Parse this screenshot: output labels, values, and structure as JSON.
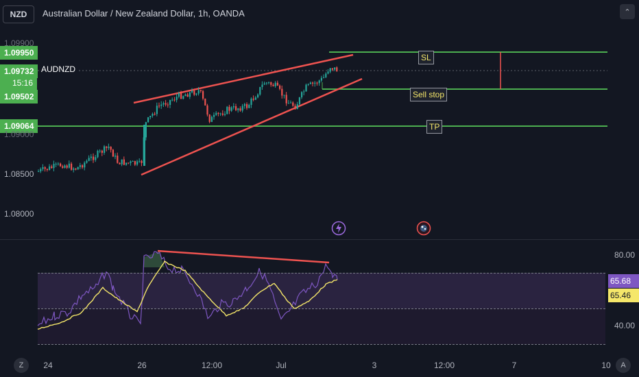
{
  "header": {
    "symbol_box": "NZD",
    "title": "Australian Dollar / New Zealand Dollar, 1h, OANDA",
    "collapse_icon": "chevron-up-icon"
  },
  "price_axis": {
    "labels": [
      "1.09950",
      "1.09502",
      "1.09064",
      "1.08500",
      "1.08000"
    ],
    "partial_labels": [
      "1.09900",
      "1.09000"
    ],
    "current_price": "1.09732",
    "countdown": "15:16",
    "symbol": "AUDNZD"
  },
  "annotations": {
    "sl": "SL",
    "sell_stop": "Sell stop",
    "tp": "TP"
  },
  "event_icons": [
    "lightning-icon",
    "earnings-icon"
  ],
  "rsi": {
    "upper": "80.00",
    "lower": "40.00",
    "rsi_value": "65.68",
    "ma_value": "65.46",
    "colors": {
      "rsi": "#7e57c2",
      "ma": "#f5e76a",
      "band": "#2a2340"
    }
  },
  "time_axis": [
    "24",
    "26",
    "12:00",
    "Jul",
    "3",
    "12:00",
    "7",
    "10"
  ],
  "bottom_buttons": {
    "left": "Z",
    "right": "A"
  },
  "colors": {
    "up": "#26a69a",
    "down": "#ef5350",
    "level": "#4caf50",
    "trend": "#ef5350"
  }
}
